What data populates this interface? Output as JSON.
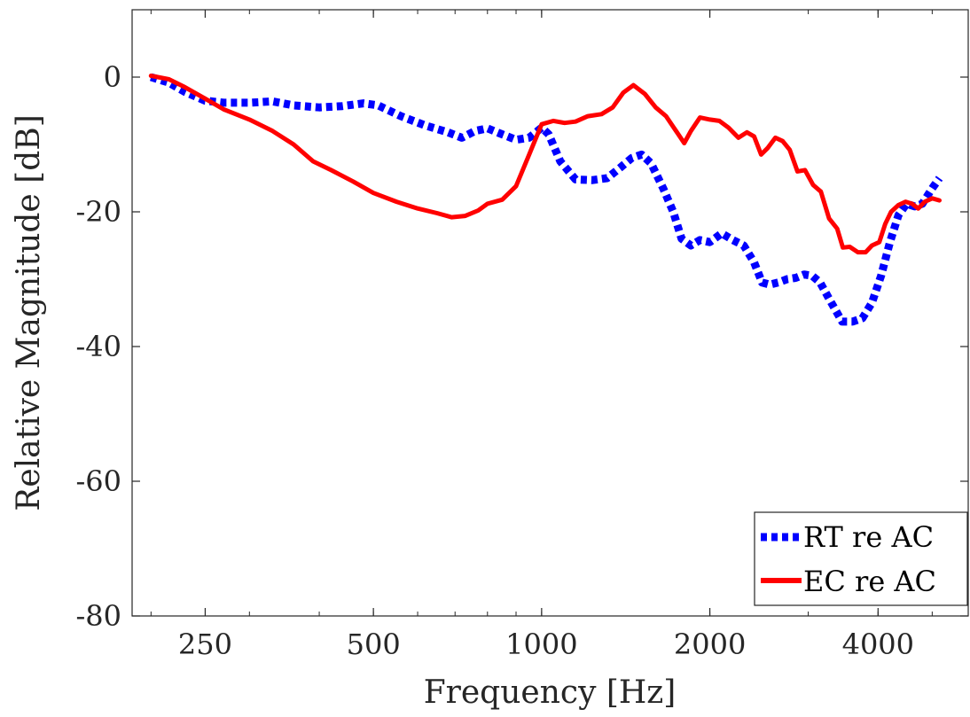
{
  "chart_data": {
    "type": "line",
    "title": "",
    "xlabel": "Frequency [Hz]",
    "ylabel": "Relative Magnitude [dB]",
    "xscale": "log",
    "xlim": [
      185,
      5800
    ],
    "ylim": [
      -80,
      10
    ],
    "xticks": [
      250,
      500,
      1000,
      2000,
      4000
    ],
    "xtick_labels": [
      "250",
      "500",
      "1000",
      "2000",
      "4000"
    ],
    "yticks": [
      0,
      -20,
      -40,
      -60,
      -80
    ],
    "ytick_labels": [
      "0",
      "-20",
      "-40",
      "-60",
      "-80"
    ],
    "grid": false,
    "box": true,
    "legend_location": "bottom-right",
    "series": [
      {
        "name": "RT re AC",
        "color": "#0000ff",
        "style": "dotted",
        "points": [
          [
            200,
            0
          ],
          [
            215,
            -0.8
          ],
          [
            230,
            -2.2
          ],
          [
            250,
            -3.5
          ],
          [
            270,
            -3.8
          ],
          [
            300,
            -3.8
          ],
          [
            330,
            -3.6
          ],
          [
            360,
            -4.2
          ],
          [
            400,
            -4.5
          ],
          [
            440,
            -4.3
          ],
          [
            480,
            -3.9
          ],
          [
            510,
            -4.2
          ],
          [
            560,
            -5.8
          ],
          [
            620,
            -7.2
          ],
          [
            680,
            -8.2
          ],
          [
            720,
            -9.0
          ],
          [
            760,
            -8.0
          ],
          [
            800,
            -7.6
          ],
          [
            850,
            -8.5
          ],
          [
            900,
            -9.3
          ],
          [
            950,
            -9.0
          ],
          [
            1000,
            -7.5
          ],
          [
            1030,
            -8.5
          ],
          [
            1080,
            -12.5
          ],
          [
            1150,
            -15.2
          ],
          [
            1230,
            -15.3
          ],
          [
            1310,
            -15.0
          ],
          [
            1380,
            -13.5
          ],
          [
            1450,
            -12.0
          ],
          [
            1510,
            -11.5
          ],
          [
            1570,
            -12.8
          ],
          [
            1650,
            -16.5
          ],
          [
            1720,
            -20.0
          ],
          [
            1780,
            -24.0
          ],
          [
            1850,
            -25.0
          ],
          [
            1920,
            -24.2
          ],
          [
            2000,
            -24.5
          ],
          [
            2100,
            -23.2
          ],
          [
            2200,
            -24.2
          ],
          [
            2300,
            -25.0
          ],
          [
            2400,
            -27.5
          ],
          [
            2480,
            -30.5
          ],
          [
            2560,
            -30.8
          ],
          [
            2650,
            -30.5
          ],
          [
            2750,
            -30.0
          ],
          [
            2850,
            -29.8
          ],
          [
            2950,
            -29.3
          ],
          [
            3050,
            -29.5
          ],
          [
            3150,
            -30.5
          ],
          [
            3300,
            -33.5
          ],
          [
            3450,
            -36.3
          ],
          [
            3600,
            -36.3
          ],
          [
            3750,
            -35.8
          ],
          [
            3900,
            -33.5
          ],
          [
            4050,
            -29.5
          ],
          [
            4200,
            -24.5
          ],
          [
            4350,
            -20.5
          ],
          [
            4500,
            -18.8
          ],
          [
            4650,
            -19.2
          ],
          [
            4800,
            -18.8
          ],
          [
            5000,
            -16.5
          ],
          [
            5150,
            -15.0
          ]
        ]
      },
      {
        "name": "EC re AC",
        "color": "#ff0000",
        "style": "solid",
        "points": [
          [
            200,
            0.2
          ],
          [
            215,
            -0.3
          ],
          [
            230,
            -1.5
          ],
          [
            250,
            -3.2
          ],
          [
            270,
            -4.8
          ],
          [
            300,
            -6.3
          ],
          [
            330,
            -8.0
          ],
          [
            360,
            -10.0
          ],
          [
            390,
            -12.5
          ],
          [
            420,
            -13.8
          ],
          [
            460,
            -15.5
          ],
          [
            500,
            -17.2
          ],
          [
            550,
            -18.5
          ],
          [
            600,
            -19.5
          ],
          [
            650,
            -20.2
          ],
          [
            690,
            -20.8
          ],
          [
            730,
            -20.6
          ],
          [
            770,
            -19.8
          ],
          [
            800,
            -18.8
          ],
          [
            850,
            -18.2
          ],
          [
            900,
            -16.2
          ],
          [
            950,
            -11.5
          ],
          [
            1000,
            -7.0
          ],
          [
            1050,
            -6.5
          ],
          [
            1100,
            -6.8
          ],
          [
            1150,
            -6.6
          ],
          [
            1210,
            -5.8
          ],
          [
            1280,
            -5.5
          ],
          [
            1340,
            -4.5
          ],
          [
            1400,
            -2.3
          ],
          [
            1460,
            -1.2
          ],
          [
            1530,
            -2.5
          ],
          [
            1600,
            -4.5
          ],
          [
            1670,
            -5.8
          ],
          [
            1740,
            -8.0
          ],
          [
            1800,
            -9.8
          ],
          [
            1850,
            -8.0
          ],
          [
            1920,
            -6.0
          ],
          [
            2000,
            -6.3
          ],
          [
            2080,
            -6.5
          ],
          [
            2160,
            -7.5
          ],
          [
            2250,
            -9.0
          ],
          [
            2330,
            -8.2
          ],
          [
            2400,
            -8.8
          ],
          [
            2470,
            -11.5
          ],
          [
            2540,
            -10.5
          ],
          [
            2620,
            -9.0
          ],
          [
            2700,
            -9.5
          ],
          [
            2780,
            -10.8
          ],
          [
            2870,
            -14.0
          ],
          [
            2960,
            -13.8
          ],
          [
            3060,
            -16.0
          ],
          [
            3160,
            -17.0
          ],
          [
            3270,
            -21.0
          ],
          [
            3380,
            -22.5
          ],
          [
            3460,
            -25.3
          ],
          [
            3560,
            -25.2
          ],
          [
            3680,
            -26.0
          ],
          [
            3800,
            -26.0
          ],
          [
            3900,
            -25.0
          ],
          [
            4020,
            -24.5
          ],
          [
            4120,
            -21.8
          ],
          [
            4220,
            -20.0
          ],
          [
            4350,
            -19.0
          ],
          [
            4480,
            -18.5
          ],
          [
            4600,
            -18.8
          ],
          [
            4720,
            -19.5
          ],
          [
            4850,
            -18.5
          ],
          [
            5000,
            -18.0
          ],
          [
            5150,
            -18.3
          ]
        ]
      }
    ]
  }
}
